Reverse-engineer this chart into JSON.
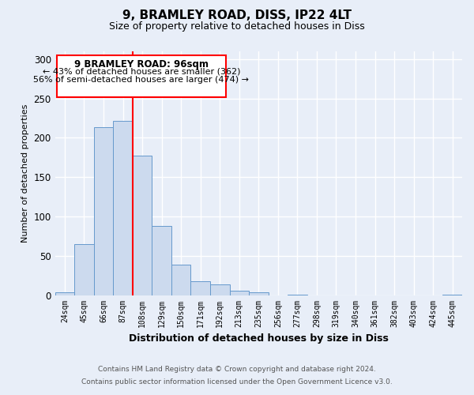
{
  "title": "9, BRAMLEY ROAD, DISS, IP22 4LT",
  "subtitle": "Size of property relative to detached houses in Diss",
  "xlabel": "Distribution of detached houses by size in Diss",
  "ylabel": "Number of detached properties",
  "footer_line1": "Contains HM Land Registry data © Crown copyright and database right 2024.",
  "footer_line2": "Contains public sector information licensed under the Open Government Licence v3.0.",
  "bar_labels": [
    "24sqm",
    "45sqm",
    "66sqm",
    "87sqm",
    "108sqm",
    "129sqm",
    "150sqm",
    "171sqm",
    "192sqm",
    "213sqm",
    "235sqm",
    "256sqm",
    "277sqm",
    "298sqm",
    "319sqm",
    "340sqm",
    "361sqm",
    "382sqm",
    "403sqm",
    "424sqm",
    "445sqm"
  ],
  "bar_values": [
    4,
    65,
    214,
    222,
    177,
    88,
    39,
    18,
    14,
    6,
    4,
    0,
    1,
    0,
    0,
    0,
    0,
    0,
    0,
    0,
    1
  ],
  "bar_color": "#ccdaee",
  "bar_edge_color": "#6699cc",
  "ylim": [
    0,
    310
  ],
  "yticks": [
    0,
    50,
    100,
    150,
    200,
    250,
    300
  ],
  "property_label": "9 BRAMLEY ROAD: 96sqm",
  "annotation_line1": "← 43% of detached houses are smaller (362)",
  "annotation_line2": "56% of semi-detached houses are larger (474) →",
  "vline_x_index": 3.5,
  "background_color": "#e8eef8",
  "plot_bg_color": "#e8eef8",
  "grid_color": "#ffffff"
}
